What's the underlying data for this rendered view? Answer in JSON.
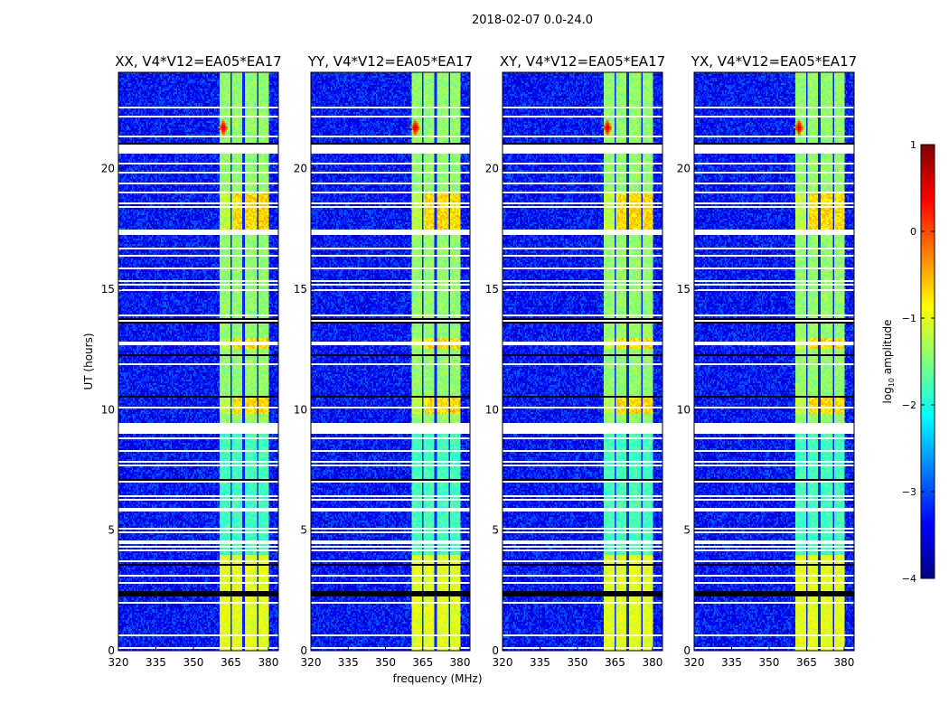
{
  "chart_data": {
    "type": "heatmap",
    "suptitle": "2018-02-07 0.0-24.0",
    "panels": [
      {
        "title": "XX, V4*V12=EA05*EA17"
      },
      {
        "title": "YY, V4*V12=EA05*EA17"
      },
      {
        "title": "XY, V4*V12=EA05*EA17"
      },
      {
        "title": "YX, V4*V12=EA05*EA17"
      }
    ],
    "xlabel": "frequency (MHz)",
    "ylabel": "UT (hours)",
    "xlim": [
      320,
      384
    ],
    "ylim": [
      0,
      24
    ],
    "xticks": [
      320,
      335,
      350,
      365,
      380
    ],
    "yticks": [
      0,
      5,
      10,
      15,
      20
    ],
    "colorbar": {
      "label": "log10 amplitude",
      "label_main": "log",
      "label_sub": "10",
      "label_rest": " amplitude",
      "range": [
        -4,
        1
      ],
      "ticks": [
        1,
        0,
        -1,
        -2,
        -3,
        -4
      ],
      "tick_labels": [
        "1",
        "0",
        "−1",
        "−2",
        "−3",
        "−4"
      ],
      "colormap": "jet"
    },
    "background_level": -3.3,
    "rfi_band_mhz": [
      360.5,
      380
    ],
    "rfi_band_level": -1.4,
    "band_gaps_mhz": [
      365.2,
      370.2,
      375.7
    ],
    "flagged_white_hours": [
      [
        20.6,
        21.0
      ],
      [
        8.97,
        9.46
      ],
      [
        4.4,
        4.55
      ],
      [
        22.1,
        22.2
      ],
      [
        22.5,
        22.6
      ],
      [
        17.3,
        17.45
      ],
      [
        15.3,
        15.4
      ],
      [
        5.8,
        5.9
      ]
    ],
    "flagged_black_hours": [
      [
        13.55,
        13.8
      ],
      [
        2.25,
        2.5
      ],
      [
        21.0,
        21.1
      ],
      [
        7.0,
        7.15
      ],
      [
        3.5,
        3.6
      ],
      [
        10.5,
        10.6
      ],
      [
        12.2,
        12.3
      ]
    ],
    "strong_source": {
      "freq_mhz": 362,
      "hour": 21.7,
      "level": 0.8
    }
  }
}
